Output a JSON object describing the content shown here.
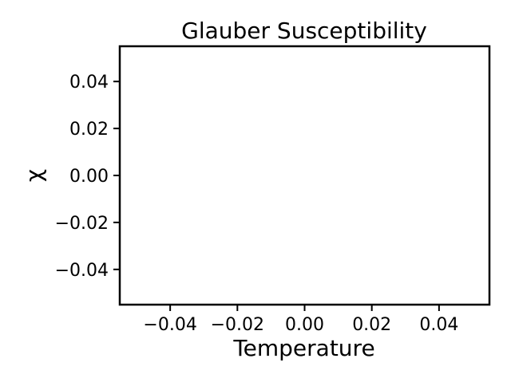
{
  "chart_data": {
    "type": "scatter",
    "title": "Glauber Susceptibility",
    "xlabel": "Temperature",
    "ylabel": "χ",
    "xlim": [
      -0.055,
      0.055
    ],
    "ylim": [
      -0.055,
      0.055
    ],
    "x_ticks": [
      -0.04,
      -0.02,
      0.0,
      0.02,
      0.04
    ],
    "y_ticks": [
      -0.04,
      -0.02,
      0.0,
      0.02,
      0.04
    ],
    "x_tick_labels": [
      "−0.04",
      "−0.02",
      "0.00",
      "0.02",
      "0.04"
    ],
    "y_tick_labels": [
      "−0.04",
      "−0.02",
      "0.00",
      "0.02",
      "0.04"
    ],
    "grid": false,
    "series": [
      {
        "x": [],
        "y": []
      }
    ]
  }
}
